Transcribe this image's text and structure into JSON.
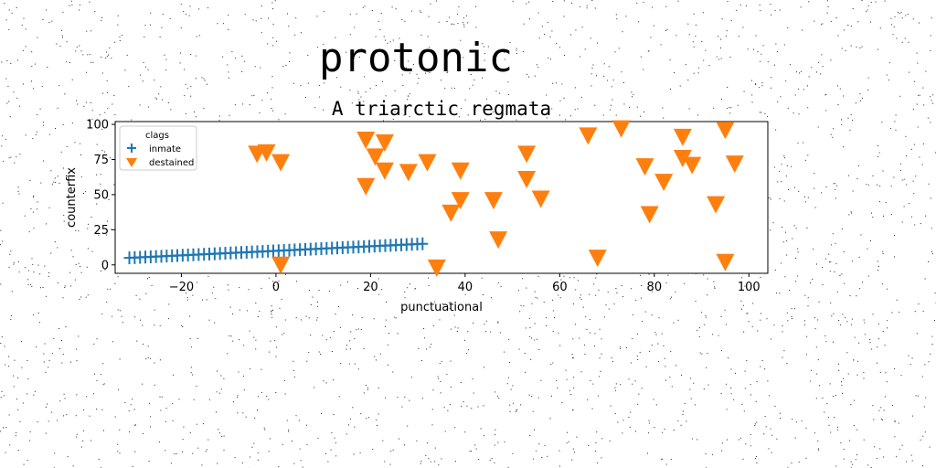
{
  "page": {
    "title": "protonic"
  },
  "chart_data": {
    "type": "scatter",
    "title": "A triarctic regmata",
    "xlabel": "punctuational",
    "ylabel": "counterfix",
    "xlim": [
      -34,
      104
    ],
    "ylim": [
      -6,
      102
    ],
    "xticks": [
      -20,
      0,
      20,
      40,
      60,
      80,
      100
    ],
    "yticks": [
      0,
      25,
      50,
      75,
      100
    ],
    "grid": false,
    "legend": {
      "title": "clags",
      "placement": "upper-left"
    },
    "series": [
      {
        "name": "inmate",
        "marker": "plus",
        "color": "#1f77b4",
        "line": true,
        "x_range": [
          -31,
          31
        ],
        "y_range": [
          5,
          15
        ],
        "n_points": 56,
        "note_fit": "linear from (-31,5) to (31,15)"
      },
      {
        "name": "destained",
        "marker": "triangle-down",
        "color": "#ff7f0e",
        "points": [
          [
            -4,
            79
          ],
          [
            -2,
            80
          ],
          [
            1,
            73
          ],
          [
            1,
            0
          ],
          [
            19,
            89
          ],
          [
            19,
            56
          ],
          [
            21,
            77
          ],
          [
            23,
            87
          ],
          [
            23,
            67
          ],
          [
            28,
            66
          ],
          [
            32,
            73
          ],
          [
            34,
            -2
          ],
          [
            37,
            37
          ],
          [
            39,
            67
          ],
          [
            39,
            46
          ],
          [
            46,
            46
          ],
          [
            47,
            18
          ],
          [
            53,
            79
          ],
          [
            53,
            61
          ],
          [
            56,
            47
          ],
          [
            66,
            92
          ],
          [
            68,
            5
          ],
          [
            73,
            97
          ],
          [
            78,
            70
          ],
          [
            79,
            36
          ],
          [
            82,
            59
          ],
          [
            86,
            91
          ],
          [
            86,
            76
          ],
          [
            88,
            71
          ],
          [
            93,
            43
          ],
          [
            95,
            96
          ],
          [
            95,
            2
          ],
          [
            97,
            72
          ]
        ]
      }
    ]
  }
}
